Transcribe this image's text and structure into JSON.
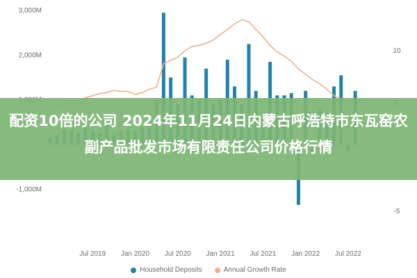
{
  "banner": {
    "title": "配资10倍的公司 2024年11月24日内蒙古呼浩特市东瓦窑农副产品批发市场有限责任公司价格行情"
  },
  "colors": {
    "bars": "#2383a6",
    "line": "#f1b089",
    "banner": "#7eb574",
    "axis_text": "#6b6b6b",
    "zero_line": "#d9d9d9"
  },
  "chart_data": {
    "type": "bar",
    "title": "",
    "grid": false,
    "legend_position": "bottom",
    "x_tick_labels": [
      "Jul 2019",
      "Jan 2020",
      "Jul 2020",
      "Jan 2021",
      "Jul 2021",
      "Jan 2022",
      "Jul 2022"
    ],
    "y_left": {
      "ticks": [
        3000,
        2000,
        1000,
        -1000
      ],
      "tick_labels": [
        "3,000M",
        "2,000M",
        "1,000M",
        "-1,000M"
      ],
      "range": [
        -1400,
        3100
      ]
    },
    "y_right": {
      "ticks": [
        10,
        5,
        -5
      ],
      "tick_labels": [
        "10",
        "5",
        "-5"
      ],
      "range": [
        -7.2,
        13.1
      ]
    },
    "x_range_months": {
      "start": "2019-01",
      "end": "2022-12"
    },
    "series": [
      {
        "name": "Household Deposits",
        "kind": "bar",
        "axis": "left",
        "points": [
          {
            "x": "2019-01",
            "y": 150
          },
          {
            "x": "2019-02",
            "y": 200
          },
          {
            "x": "2019-03",
            "y": 350
          },
          {
            "x": "2019-04",
            "y": 300
          },
          {
            "x": "2019-05",
            "y": 250
          },
          {
            "x": "2019-06",
            "y": 400
          },
          {
            "x": "2019-07",
            "y": 300
          },
          {
            "x": "2019-08",
            "y": 250
          },
          {
            "x": "2019-09",
            "y": 450
          },
          {
            "x": "2019-10",
            "y": 200
          },
          {
            "x": "2019-11",
            "y": 300
          },
          {
            "x": "2019-12",
            "y": 350
          },
          {
            "x": "2020-01",
            "y": 300
          },
          {
            "x": "2020-02",
            "y": 400
          },
          {
            "x": "2020-03",
            "y": 600
          },
          {
            "x": "2020-04",
            "y": 1000
          },
          {
            "x": "2020-05",
            "y": 2950
          },
          {
            "x": "2020-06",
            "y": 1500
          },
          {
            "x": "2020-07",
            "y": 900
          },
          {
            "x": "2020-08",
            "y": 1950
          },
          {
            "x": "2020-09",
            "y": 1100
          },
          {
            "x": "2020-10",
            "y": 1000
          },
          {
            "x": "2020-11",
            "y": 1700
          },
          {
            "x": "2020-12",
            "y": 900
          },
          {
            "x": "2021-01",
            "y": 1000
          },
          {
            "x": "2021-02",
            "y": 1900
          },
          {
            "x": "2021-03",
            "y": 1300
          },
          {
            "x": "2021-04",
            "y": 900
          },
          {
            "x": "2021-05",
            "y": 2250
          },
          {
            "x": "2021-06",
            "y": 1200
          },
          {
            "x": "2021-07",
            "y": 600
          },
          {
            "x": "2021-08",
            "y": 1850
          },
          {
            "x": "2021-09",
            "y": 1100
          },
          {
            "x": "2021-10",
            "y": 1100
          },
          {
            "x": "2021-11",
            "y": 1150
          },
          {
            "x": "2021-12",
            "y": -1350
          },
          {
            "x": "2022-01",
            "y": 1200
          },
          {
            "x": "2022-02",
            "y": -150
          },
          {
            "x": "2022-03",
            "y": 800
          },
          {
            "x": "2022-04",
            "y": 700
          },
          {
            "x": "2022-05",
            "y": 1300
          },
          {
            "x": "2022-06",
            "y": 1550
          },
          {
            "x": "2022-07",
            "y": -150
          },
          {
            "x": "2022-08",
            "y": 1200
          }
        ]
      },
      {
        "name": "Annual Growth Rate",
        "kind": "line",
        "axis": "right",
        "points": [
          {
            "x": "2019-01",
            "y": 4.7
          },
          {
            "x": "2019-02",
            "y": 4.8
          },
          {
            "x": "2019-03",
            "y": 4.9
          },
          {
            "x": "2019-04",
            "y": 5.1
          },
          {
            "x": "2019-05",
            "y": 5.4
          },
          {
            "x": "2019-06",
            "y": 5.6
          },
          {
            "x": "2019-07",
            "y": 5.8
          },
          {
            "x": "2019-08",
            "y": 6.0
          },
          {
            "x": "2019-09",
            "y": 6.1
          },
          {
            "x": "2019-10",
            "y": 6.3
          },
          {
            "x": "2019-11",
            "y": 6.2
          },
          {
            "x": "2019-12",
            "y": 6.2
          },
          {
            "x": "2020-01",
            "y": 5.9
          },
          {
            "x": "2020-02",
            "y": 6.1
          },
          {
            "x": "2020-03",
            "y": 6.4
          },
          {
            "x": "2020-04",
            "y": 6.6
          },
          {
            "x": "2020-05",
            "y": 8.8
          },
          {
            "x": "2020-06",
            "y": 9.1
          },
          {
            "x": "2020-07",
            "y": 9.4
          },
          {
            "x": "2020-08",
            "y": 10.0
          },
          {
            "x": "2020-09",
            "y": 10.4
          },
          {
            "x": "2020-10",
            "y": 10.5
          },
          {
            "x": "2020-11",
            "y": 10.7
          },
          {
            "x": "2020-12",
            "y": 11.0
          },
          {
            "x": "2021-01",
            "y": 11.5
          },
          {
            "x": "2021-02",
            "y": 12.0
          },
          {
            "x": "2021-03",
            "y": 12.5
          },
          {
            "x": "2021-04",
            "y": 12.9
          },
          {
            "x": "2021-05",
            "y": 12.7
          },
          {
            "x": "2021-06",
            "y": 12.0
          },
          {
            "x": "2021-07",
            "y": 11.3
          },
          {
            "x": "2021-08",
            "y": 10.5
          },
          {
            "x": "2021-09",
            "y": 9.9
          },
          {
            "x": "2021-10",
            "y": 9.5
          },
          {
            "x": "2021-11",
            "y": 9.0
          },
          {
            "x": "2021-12",
            "y": 8.3
          },
          {
            "x": "2022-01",
            "y": 7.8
          },
          {
            "x": "2022-02",
            "y": 7.3
          },
          {
            "x": "2022-03",
            "y": 6.9
          },
          {
            "x": "2022-04",
            "y": 6.4
          },
          {
            "x": "2022-05",
            "y": 5.8
          },
          {
            "x": "2022-06",
            "y": 5.5
          },
          {
            "x": "2022-07",
            "y": 5.4
          },
          {
            "x": "2022-08",
            "y": 5.3
          }
        ]
      }
    ]
  }
}
